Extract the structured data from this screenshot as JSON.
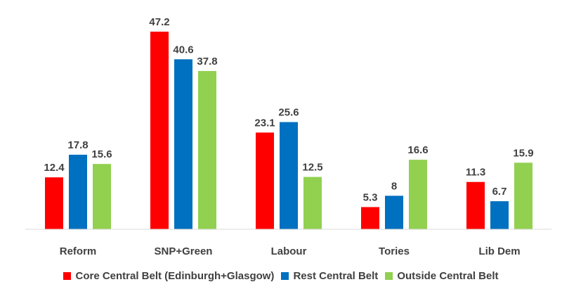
{
  "chart_data": {
    "type": "bar",
    "categories": [
      "Reform",
      "SNP+Green",
      "Labour",
      "Tories",
      "Lib Dem"
    ],
    "series": [
      {
        "name": "Core Central Belt (Edinburgh+Glasgow)",
        "color": "#ff0000",
        "values": [
          12.4,
          47.2,
          23.1,
          5.3,
          11.3
        ]
      },
      {
        "name": "Rest Central Belt",
        "color": "#0070c0",
        "values": [
          17.8,
          40.6,
          25.6,
          8,
          6.7
        ]
      },
      {
        "name": "Outside Central Belt",
        "color": "#92d050",
        "values": [
          15.6,
          37.8,
          12.5,
          16.6,
          15.9
        ]
      }
    ],
    "title": "",
    "xlabel": "",
    "ylabel": "",
    "ylim": [
      0,
      47.2
    ],
    "grid": false,
    "legend_position": "bottom",
    "axis_color": "#d9d9d9",
    "label_color": "#404040"
  }
}
